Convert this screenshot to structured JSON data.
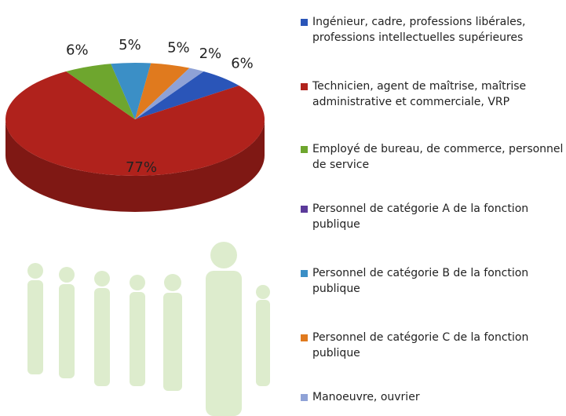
{
  "chart_data": {
    "type": "pie3d",
    "categories": [
      "Ingénieur, cadre, professions libérales, professions intellectuelles supérieures",
      "Technicien, agent de maîtrise, maîtrise administrative et commerciale,  VRP",
      "Employé de bureau, de commerce, personnel de service",
      "Personnel de catégorie A de la fonction publique",
      "Personnel de catégorie B de la fonction publique",
      "Personnel de catégorie C de la fonction publique",
      "Manoeuvre, ouvrier"
    ],
    "values": [
      6,
      77,
      6,
      0,
      5,
      5,
      2
    ],
    "value_labels": [
      "6%",
      "77%",
      "6%",
      null,
      "5%",
      "5%",
      "2%"
    ],
    "colors": [
      "#2a55b8",
      "#b0221c",
      "#6ea62e",
      "#5b3a9a",
      "#3b8fc6",
      "#e07a1e",
      "#8fa2d6"
    ],
    "legend": "right"
  }
}
